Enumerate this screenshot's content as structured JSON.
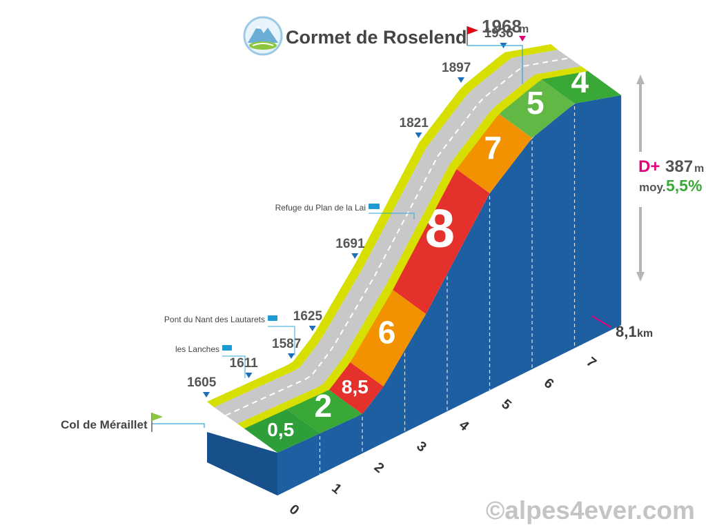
{
  "title": "Cormet de Roselend",
  "summit": {
    "altitude": "1968",
    "unit": "m"
  },
  "start": {
    "name": "Col de Méraillet",
    "altitude": "1605"
  },
  "stats": {
    "gain_label": "D+",
    "gain_value": "387",
    "gain_unit": "m",
    "avg_label": "moy.",
    "avg_value": "5,5%"
  },
  "distance": {
    "value": "8,1",
    "unit": "km"
  },
  "waypoints": [
    {
      "name": "les Lanches",
      "km": 1.0,
      "altitude": "1611"
    },
    {
      "name": "Pont du Nant des Lautarets",
      "km": 2.0,
      "altitude": "1587"
    }
  ],
  "refuge": {
    "name": "Refuge du Plan de la Lai",
    "km": 5.0,
    "altitude": "1821"
  },
  "altitude_marks": [
    {
      "km": 0.0,
      "altitude": "1605"
    },
    {
      "km": 1.0,
      "altitude": "1611"
    },
    {
      "km": 2.0,
      "altitude": "1587"
    },
    {
      "km": 2.5,
      "altitude": "1625"
    },
    {
      "km": 3.5,
      "altitude": "1691"
    },
    {
      "km": 5.0,
      "altitude": "1821"
    },
    {
      "km": 6.0,
      "altitude": "1897"
    },
    {
      "km": 7.0,
      "altitude": "1936"
    }
  ],
  "km_ticks": [
    "0",
    "1",
    "2",
    "3",
    "4",
    "5",
    "6",
    "7"
  ],
  "grade_segments": [
    {
      "label": "0,5",
      "from_km": 0,
      "to_km": 1,
      "color": "#2e9e3a"
    },
    {
      "label": "2",
      "from_km": 1,
      "to_km": 2,
      "color": "#3aa836"
    },
    {
      "label": "8,5",
      "from_km": 2,
      "to_km": 2.5,
      "color": "#e4312b"
    },
    {
      "label": "6",
      "from_km": 2.5,
      "to_km": 3.5,
      "color": "#f39200"
    },
    {
      "label": "8",
      "from_km": 3.5,
      "to_km": 5,
      "color": "#e4312b"
    },
    {
      "label": "7",
      "from_km": 5,
      "to_km": 6,
      "color": "#f39200"
    },
    {
      "label": "5",
      "from_km": 6,
      "to_km": 7,
      "color": "#62b845"
    },
    {
      "label": "4",
      "from_km": 7,
      "to_km": 8.1,
      "color": "#3aa836"
    }
  ],
  "watermark": "©alpes4ever.com",
  "colors": {
    "road": "#c8c8c8",
    "verge": "#d6df00",
    "side": "#1d5fa0",
    "front": "#18508c",
    "flag_start": "#8cc63f",
    "flag_end": "#e30613",
    "pin": "#e2007a"
  }
}
